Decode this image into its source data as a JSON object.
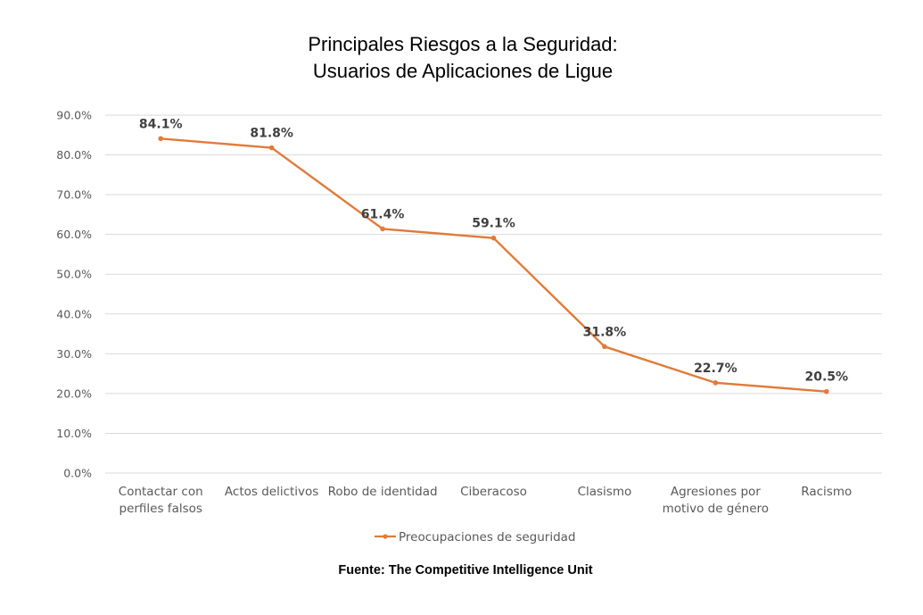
{
  "chart_data": {
    "type": "line",
    "title": [
      "Principales Riesgos a la Seguridad:",
      "Usuarios de Aplicaciones de Ligue"
    ],
    "categories": [
      [
        "Contactar con",
        "perfiles falsos"
      ],
      [
        "Actos delictivos"
      ],
      [
        "Robo de identidad"
      ],
      [
        "Ciberacoso"
      ],
      [
        "Clasismo"
      ],
      [
        "Agresiones por",
        "motivo de género"
      ],
      [
        "Racismo"
      ]
    ],
    "series": [
      {
        "name": "Preocupaciones de seguridad",
        "values": [
          84.1,
          81.8,
          61.4,
          59.1,
          31.8,
          22.7,
          20.5
        ],
        "color": "#E07B39"
      }
    ],
    "data_labels": [
      "84.1%",
      "81.8%",
      "61.4%",
      "59.1%",
      "31.8%",
      "22.7%",
      "20.5%"
    ],
    "y_ticks": [
      "0.0%",
      "10.0%",
      "20.0%",
      "30.0%",
      "40.0%",
      "50.0%",
      "60.0%",
      "70.0%",
      "80.0%",
      "90.0%"
    ],
    "ylim": [
      0,
      90
    ],
    "grid": true,
    "legend_position": "bottom",
    "source": "Fuente: The Competitive Intelligence Unit",
    "colors": {
      "series": "#E07B39",
      "grid": "#D9D9D9",
      "axis_text": "#595959",
      "data_label": "#404040"
    }
  }
}
